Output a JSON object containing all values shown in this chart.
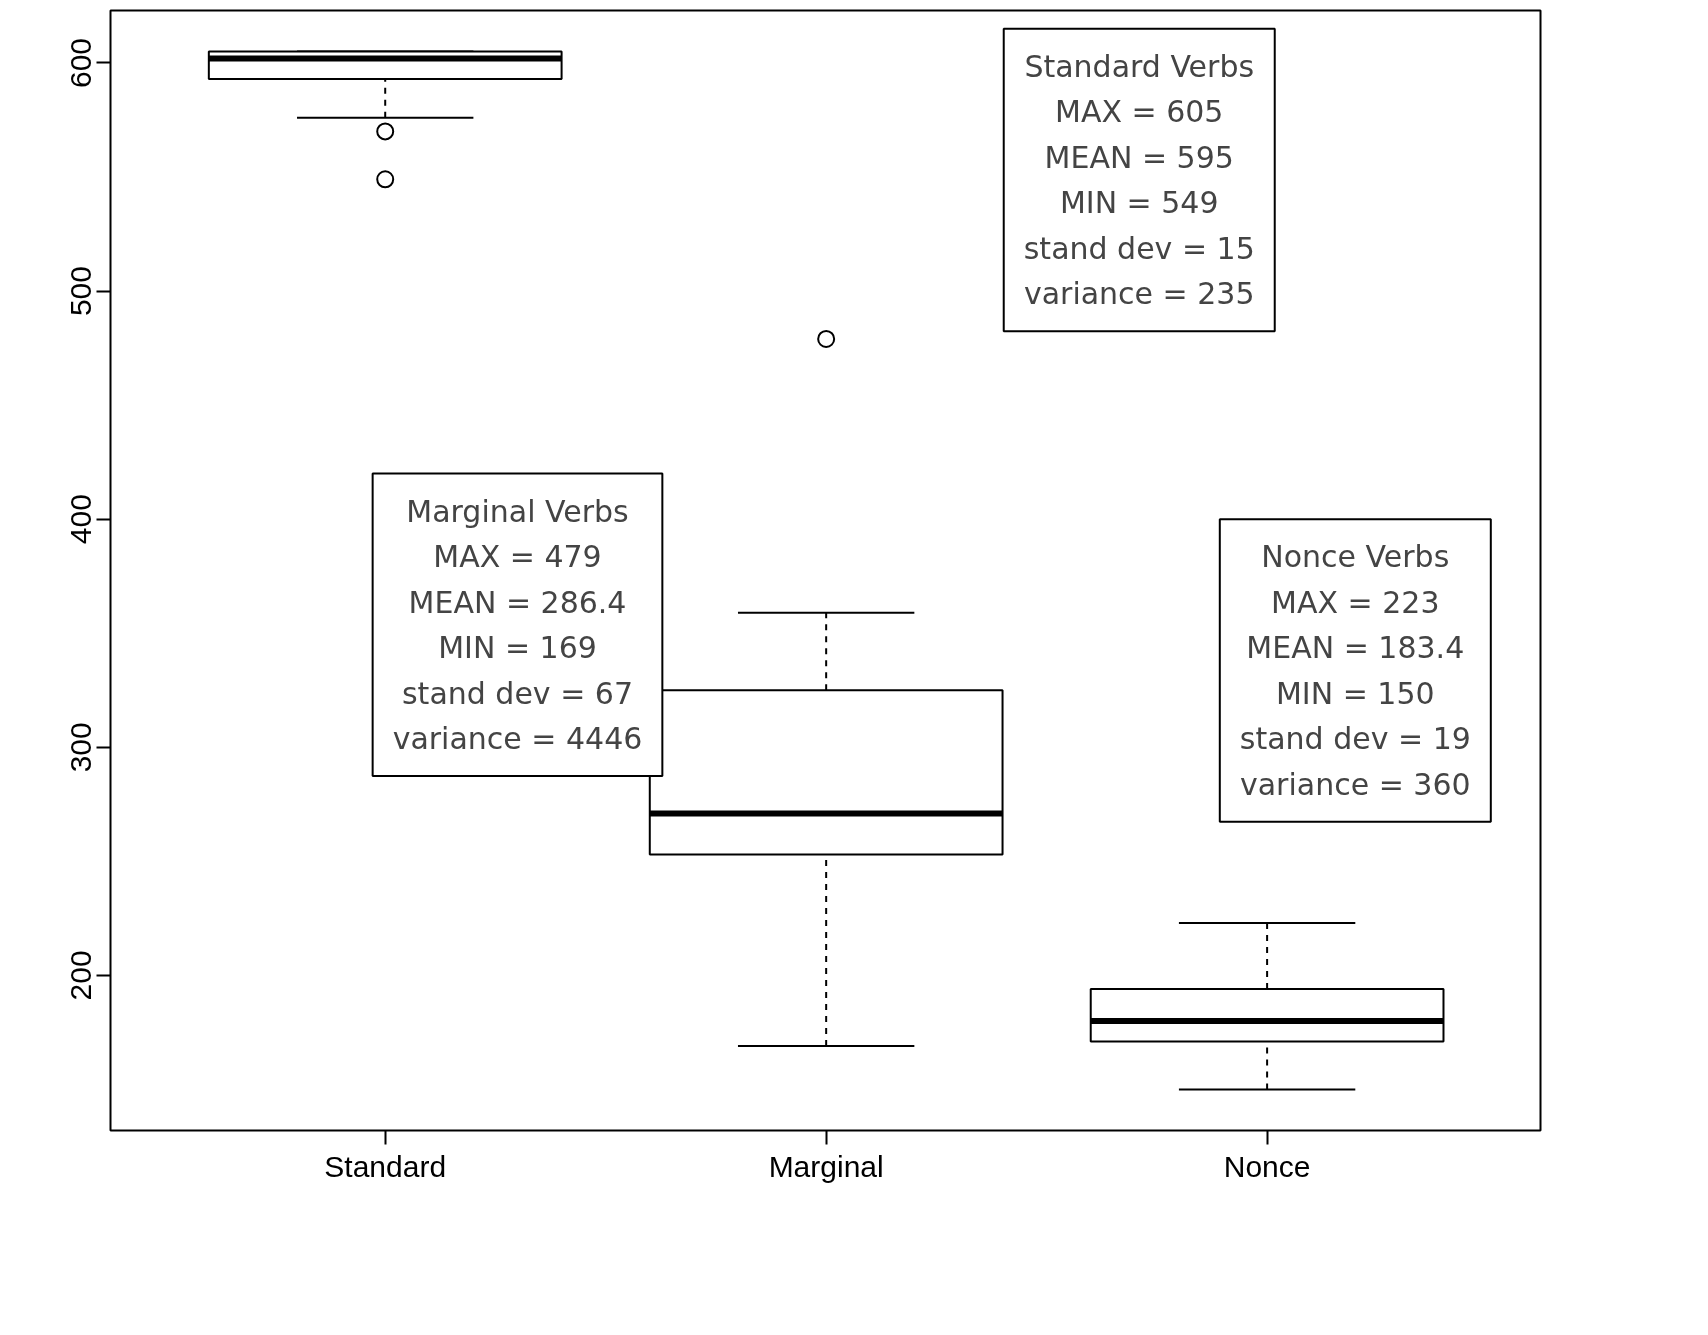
{
  "chart_data": {
    "type": "box",
    "categories": [
      "Standard",
      "Marginal",
      "Nonce"
    ],
    "boxes": [
      {
        "low": 576,
        "q1": 593,
        "median": 602,
        "q3": 605,
        "high": 605,
        "outliers": [
          570,
          549
        ]
      },
      {
        "low": 169,
        "q1": 253,
        "median": 271,
        "q3": 325,
        "high": 359,
        "outliers": [
          479
        ]
      },
      {
        "low": 150,
        "q1": 171,
        "median": 180,
        "q3": 194,
        "high": 223
      }
    ],
    "ylim": [
      132,
      623
    ],
    "yticks": [
      200,
      300,
      400,
      500,
      600
    ],
    "grid": false,
    "color": "#000000",
    "annotations": [
      "Standard Verbs\nMAX = 605\nMEAN = 595\nMIN = 549\nstand dev = 15\nvariance = 235",
      "Marginal Verbs\nMAX = 479\nMEAN = 286.4\nMIN = 169\nstand dev = 67\nvariance = 4446",
      "Nonce Verbs\nMAX = 223\nMEAN = 183.4\nMIN = 150\nstand dev = 19\nvariance = 360"
    ]
  }
}
